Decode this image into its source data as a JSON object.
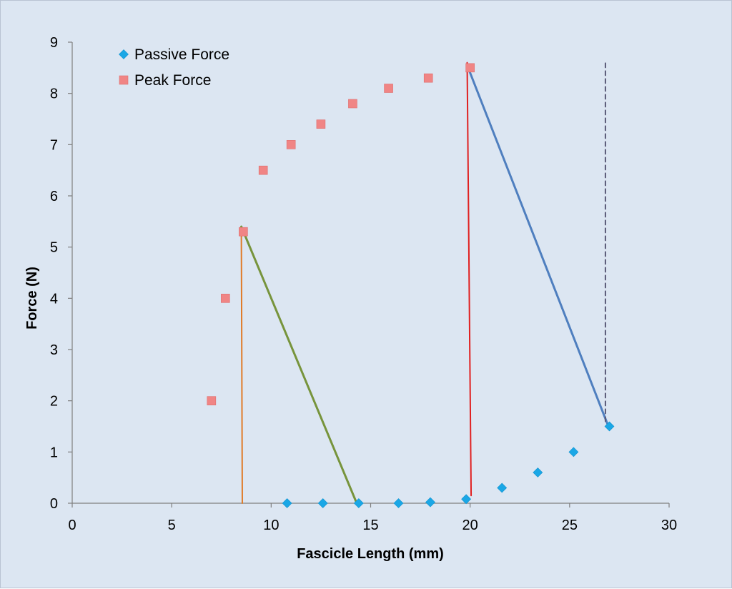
{
  "chart_data": {
    "type": "scatter",
    "title": "",
    "xlabel": "Fascicle Length (mm)",
    "ylabel": "Force (N)",
    "xlim": [
      0,
      30
    ],
    "ylim": [
      0,
      9
    ],
    "x_ticks": [
      0,
      5,
      10,
      15,
      20,
      25,
      30
    ],
    "y_ticks": [
      0,
      1,
      2,
      3,
      4,
      5,
      6,
      7,
      8,
      9
    ],
    "grid": false,
    "legend_position": "top-left",
    "background_color": "#dce6f2",
    "series": [
      {
        "name": "Passive Force",
        "marker": "diamond",
        "color": "#1aa7e6",
        "points": [
          {
            "x": 10.8,
            "y": 0
          },
          {
            "x": 12.6,
            "y": 0
          },
          {
            "x": 14.4,
            "y": 0
          },
          {
            "x": 16.4,
            "y": 0
          },
          {
            "x": 18.0,
            "y": 0.02
          },
          {
            "x": 19.8,
            "y": 0.08
          },
          {
            "x": 21.6,
            "y": 0.3
          },
          {
            "x": 23.4,
            "y": 0.6
          },
          {
            "x": 25.2,
            "y": 1.0
          },
          {
            "x": 27.0,
            "y": 1.5
          }
        ]
      },
      {
        "name": "Peak Force",
        "marker": "square",
        "color": "#f08585",
        "points": [
          {
            "x": 7.0,
            "y": 2.0
          },
          {
            "x": 7.7,
            "y": 4.0
          },
          {
            "x": 8.6,
            "y": 5.3
          },
          {
            "x": 9.6,
            "y": 6.5
          },
          {
            "x": 11.0,
            "y": 7.0
          },
          {
            "x": 12.5,
            "y": 7.4
          },
          {
            "x": 14.1,
            "y": 7.8
          },
          {
            "x": 15.9,
            "y": 8.1
          },
          {
            "x": 17.9,
            "y": 8.3
          },
          {
            "x": 20.0,
            "y": 8.5
          }
        ]
      }
    ],
    "annotations": [
      {
        "name": "orange-vertical-line",
        "color": "#e07b28",
        "width": 2,
        "dash": false,
        "x1": 8.55,
        "y1": 0,
        "x2": 8.5,
        "y2": 5.4
      },
      {
        "name": "green-diagonal-line",
        "color": "#77943c",
        "width": 3,
        "dash": false,
        "x1": 8.5,
        "y1": 5.4,
        "x2": 14.3,
        "y2": 0
      },
      {
        "name": "red-vertical-line",
        "color": "#e02020",
        "width": 2,
        "dash": false,
        "x1": 20.05,
        "y1": 0.15,
        "x2": 19.85,
        "y2": 8.6
      },
      {
        "name": "blue-diagonal-line",
        "color": "#4f7fbf",
        "width": 3,
        "dash": false,
        "x1": 19.9,
        "y1": 8.5,
        "x2": 26.9,
        "y2": 1.55
      },
      {
        "name": "dashed-vertical-line",
        "color": "#5a5a78",
        "width": 2,
        "dash": true,
        "x1": 26.8,
        "y1": 1.6,
        "x2": 26.8,
        "y2": 8.6
      }
    ]
  }
}
